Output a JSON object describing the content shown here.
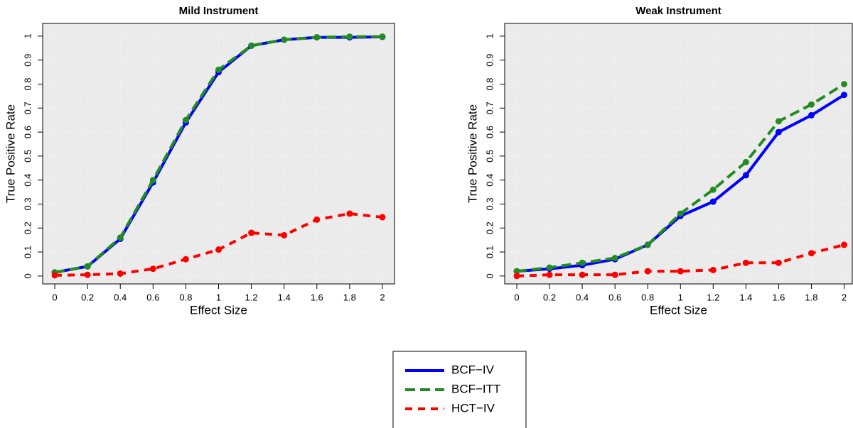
{
  "chart_data": [
    {
      "type": "line",
      "title": "Mild Instrument",
      "x_label": "Effect Size",
      "y_label": "True Positive Rate",
      "x": [
        0,
        0.2,
        0.4,
        0.6,
        0.8,
        1,
        1.2,
        1.4,
        1.6,
        1.8,
        2
      ],
      "series": [
        {
          "name": "BCF−IV",
          "color": "#0000ff",
          "linestyle": "solid",
          "values": [
            0.015,
            0.04,
            0.155,
            0.39,
            0.64,
            0.85,
            0.96,
            0.985,
            0.995,
            0.995,
            0.997
          ]
        },
        {
          "name": "BCF−ITT",
          "color": "#228b22",
          "linestyle": "longdash",
          "values": [
            0.015,
            0.04,
            0.16,
            0.4,
            0.65,
            0.86,
            0.96,
            0.985,
            0.995,
            0.998,
            0.998
          ]
        },
        {
          "name": "HCT−IV",
          "color": "#ff0000",
          "linestyle": "dashed",
          "values": [
            0.003,
            0.005,
            0.01,
            0.03,
            0.07,
            0.11,
            0.18,
            0.17,
            0.235,
            0.26,
            0.245
          ]
        }
      ],
      "xlim": [
        -0.074,
        2.074
      ],
      "ylim": [
        -0.033,
        1.053
      ],
      "xticks": [
        0,
        0.2,
        0.4,
        0.6,
        0.8,
        1,
        1.2,
        1.4,
        1.6,
        1.8,
        2
      ],
      "yticks": [
        0,
        0.1,
        0.2,
        0.3,
        0.4,
        0.5,
        0.6,
        0.7,
        0.8,
        0.9,
        1
      ],
      "grid": true
    },
    {
      "type": "line",
      "title": "Weak Instrument",
      "x_label": "Effect Size",
      "y_label": "True Positive Rate",
      "x": [
        0,
        0.2,
        0.4,
        0.6,
        0.8,
        1,
        1.2,
        1.4,
        1.6,
        1.8,
        2
      ],
      "series": [
        {
          "name": "BCF−IV",
          "color": "#0000ff",
          "linestyle": "solid",
          "values": [
            0.02,
            0.03,
            0.045,
            0.07,
            0.13,
            0.25,
            0.31,
            0.42,
            0.6,
            0.67,
            0.755
          ]
        },
        {
          "name": "BCF−ITT",
          "color": "#228b22",
          "linestyle": "longdash",
          "values": [
            0.02,
            0.035,
            0.055,
            0.075,
            0.13,
            0.26,
            0.36,
            0.475,
            0.645,
            0.715,
            0.8
          ]
        },
        {
          "name": "HCT−IV",
          "color": "#ff0000",
          "linestyle": "dashed",
          "values": [
            0.0,
            0.005,
            0.005,
            0.005,
            0.02,
            0.02,
            0.025,
            0.055,
            0.055,
            0.095,
            0.13
          ]
        }
      ],
      "xlim": [
        -0.074,
        2.05
      ],
      "ylim": [
        -0.033,
        1.053
      ],
      "xticks": [
        0,
        0.2,
        0.4,
        0.6,
        0.8,
        1,
        1.2,
        1.4,
        1.6,
        1.8,
        2
      ],
      "yticks": [
        0,
        0.1,
        0.2,
        0.3,
        0.4,
        0.5,
        0.6,
        0.7,
        0.8,
        0.9,
        1
      ],
      "grid": true
    }
  ]
}
